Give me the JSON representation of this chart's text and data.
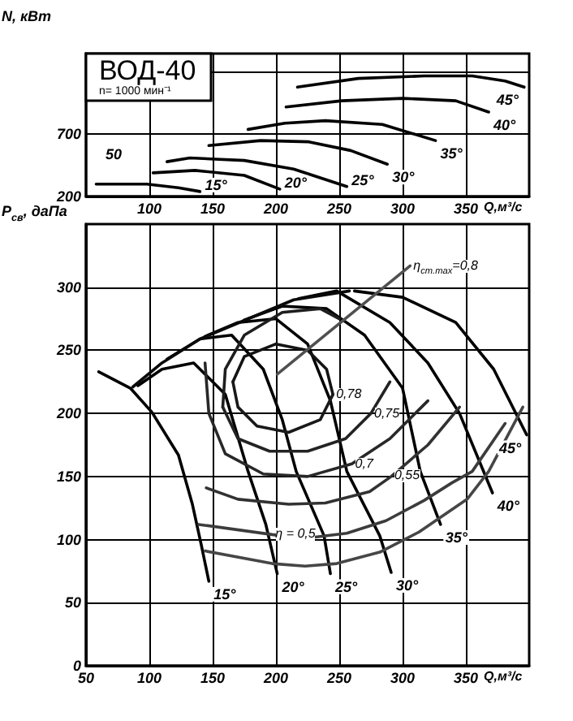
{
  "chart_data": [
    {
      "type": "line",
      "title": "ВОД-40",
      "subtitle": "n= 1000 мин⁻¹",
      "xlabel": "Q,м³/с",
      "ylabel": "N, кВт",
      "xlim": [
        50,
        400
      ],
      "xticks": [
        100,
        150,
        200,
        250,
        300,
        350
      ],
      "ylim": [
        200,
        1350
      ],
      "yticks": [
        200,
        700,
        {
          "value": 1200,
          "label": null
        }
      ],
      "grid": true,
      "legend": false,
      "marker": "none",
      "line_style": "solid",
      "annotations": [
        "50"
      ],
      "series": [
        {
          "name": "15°",
          "color": "#000000",
          "x": [
            58,
            98,
            123,
            140
          ],
          "values": [
            300,
            300,
            270,
            240
          ]
        },
        {
          "name": "20°",
          "color": "#000000",
          "x": [
            103,
            136,
            175,
            203
          ],
          "values": [
            390,
            410,
            370,
            260
          ]
        },
        {
          "name": "25°",
          "color": "#000000",
          "x": [
            114,
            132,
            175,
            214,
            256
          ],
          "values": [
            480,
            510,
            490,
            420,
            280
          ]
        },
        {
          "name": "30°",
          "color": "#000000",
          "x": [
            147,
            188,
            226,
            259,
            288
          ],
          "values": [
            610,
            650,
            640,
            570,
            460
          ]
        },
        {
          "name": "35°",
          "color": "#000000",
          "x": [
            178,
            207,
            239,
            284,
            326
          ],
          "values": [
            740,
            790,
            810,
            780,
            650
          ]
        },
        {
          "name": "40°",
          "color": "#000000",
          "x": [
            208,
            252,
            300,
            342,
            368
          ],
          "values": [
            920,
            970,
            990,
            970,
            880
          ]
        },
        {
          "name": "45°",
          "color": "#000000",
          "x": [
            217,
            265,
            317,
            355,
            381,
            396
          ],
          "values": [
            1080,
            1150,
            1170,
            1170,
            1130,
            1080
          ]
        }
      ]
    },
    {
      "type": "line",
      "xlabel": "Q,м³/с",
      "ylabel": "P$_{св}$, даПа",
      "xlim": [
        50,
        400
      ],
      "xticks": [
        50,
        100,
        150,
        200,
        250,
        300,
        350
      ],
      "ylim": [
        0,
        350
      ],
      "yticks": [
        0,
        50,
        100,
        150,
        200,
        250,
        300
      ],
      "grid": true,
      "legend": false,
      "marker": "none",
      "line_style": "solid",
      "annotations": [
        {
          "text": "0,78",
          "x": 245,
          "y": 215
        },
        {
          "text": "0,75",
          "x": 275,
          "y": 200
        },
        {
          "text": "0,7",
          "x": 260,
          "y": 160
        },
        {
          "text": "0,55",
          "x": 291,
          "y": 150
        },
        {
          "text": "η = 0,5",
          "x": 197,
          "y": 104
        },
        {
          "text": "η$_{ст.max}$=0,8",
          "x": 306,
          "y": 317
        }
      ],
      "series": [
        {
          "name": "15°",
          "color": "#000000",
          "x": [
            60,
            85,
            102,
            123,
            134,
            141,
            147
          ],
          "values": [
            233,
            220,
            201,
            167,
            128,
            96,
            67
          ]
        },
        {
          "name": "20°",
          "color": "#000000",
          "x": [
            91,
            110,
            135,
            160,
            178,
            192,
            201
          ],
          "values": [
            222,
            235,
            240,
            215,
            154,
            112,
            73
          ]
        },
        {
          "name": "25°",
          "color": "#000000",
          "x": [
            114,
            140,
            165,
            190,
            205,
            216,
            238,
            243
          ],
          "values": [
            243,
            259,
            262,
            235,
            195,
            154,
            103,
            73
          ]
        },
        {
          "name": "30°",
          "color": "#000000",
          "x": [
            144,
            170,
            200,
            225,
            243,
            256,
            282,
            291
          ],
          "values": [
            261,
            272,
            275,
            255,
            210,
            154,
            103,
            74
          ]
        },
        {
          "name": "35°",
          "color": "#000000",
          "x": [
            175,
            205,
            240,
            270,
            300,
            314,
            330
          ],
          "values": [
            274,
            285,
            283,
            262,
            220,
            154,
            112
          ]
        },
        {
          "name": "40°",
          "color": "#000000",
          "x": [
            218,
            248,
            290,
            320,
            345,
            371
          ],
          "values": [
            291,
            297,
            272,
            240,
            200,
            137
          ]
        },
        {
          "name": "45°",
          "color": "#000000",
          "x": [
            262,
            300,
            342,
            372,
            398
          ],
          "values": [
            297,
            292,
            272,
            235,
            183
          ]
        },
        {
          "color": "#0a0a0a",
          "x": [
            87,
            110,
            140,
            171,
            214,
            258
          ],
          "values": [
            221,
            240,
            259,
            272,
            290,
            297
          ]
        },
        {
          "color": "#141414",
          "x": [
            166,
            175,
            200,
            225,
            240,
            245
          ],
          "values": [
            225,
            245,
            255,
            250,
            235,
            215
          ]
        },
        {
          "color": "#191919",
          "x": [
            166,
            170,
            185,
            210,
            235,
            245
          ],
          "values": [
            225,
            205,
            190,
            185,
            195,
            215
          ]
        },
        {
          "color": "#1e1e1e",
          "x": [
            158,
            160,
            175,
            205,
            235,
            250
          ],
          "values": [
            205,
            235,
            262,
            280,
            283,
            275
          ]
        },
        {
          "color": "#232323",
          "x": [
            158,
            170,
            195,
            225,
            255,
            275,
            290
          ],
          "values": [
            205,
            180,
            170,
            170,
            180,
            200,
            225
          ]
        },
        {
          "color": "#282828",
          "x": [
            144,
            147,
            160,
            190,
            225,
            260,
            290,
            320
          ],
          "values": [
            240,
            200,
            168,
            152,
            150,
            160,
            180,
            210
          ]
        },
        {
          "color": "#323232",
          "x": [
            145,
            170,
            210,
            239,
            274,
            291,
            320,
            345
          ],
          "values": [
            141,
            132,
            128,
            129,
            138,
            150,
            175,
            205
          ]
        },
        {
          "color": "#3c3c3c",
          "x": [
            139,
            197,
            223,
            256,
            287,
            317,
            339,
            355,
            381
          ],
          "values": [
            112,
            104,
            101,
            105,
            115,
            131,
            145,
            154,
            192
          ]
        },
        {
          "color": "#464646",
          "x": [
            144,
            197,
            223,
            248,
            282,
            313,
            351,
            368,
            395
          ],
          "values": [
            91,
            81,
            79,
            81,
            90,
            106,
            132,
            154,
            205
          ]
        },
        {
          "color": "#505050",
          "x": [
            201,
            306
          ],
          "values": [
            231,
            317
          ]
        }
      ]
    }
  ]
}
